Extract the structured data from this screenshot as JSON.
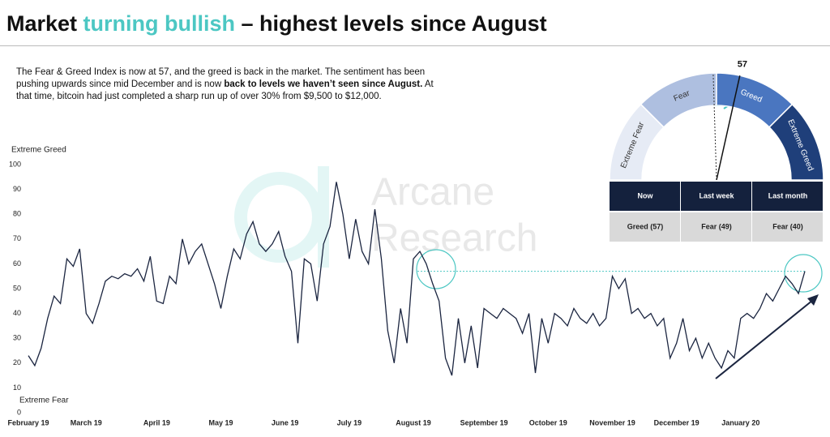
{
  "header": {
    "title": [
      "Market ",
      "turning bullish",
      " – highest levels since August"
    ]
  },
  "intro": [
    "The Fear & Greed Index is now at 57, and the greed is back in the market. The sentiment has been pushing upwards since mid December and is now ",
    "back to levels we haven’t seen since August.",
    " At that time, bitcoin had just completed a sharp run up of over 30% from $9,500 to $12,000."
  ],
  "watermark": [
    "Arcane",
    "Research"
  ],
  "gauge": {
    "value": 57,
    "previous": 49,
    "range": [
      0,
      100
    ],
    "segments": [
      {
        "name": "Extreme Fear",
        "color": "#e6ebf5"
      },
      {
        "name": "Fear",
        "color": "#aebfe0"
      },
      {
        "name": "Greed",
        "color": "#4a76c0"
      },
      {
        "name": "Extreme Greed",
        "color": "#1f3f7a"
      }
    ]
  },
  "table": {
    "headers": [
      "Now",
      "Last week",
      "Last month"
    ],
    "rows": [
      [
        "Greed (57)",
        "Fear (49)",
        "Fear (40)"
      ]
    ]
  },
  "chart_data": {
    "type": "line",
    "color": "#1b2540",
    "top_label": "Extreme Greed",
    "bottom_label": "Extreme Fear",
    "categories": [
      "February 19",
      null,
      null,
      null,
      null,
      null,
      null,
      null,
      null,
      "March 19",
      null,
      null,
      null,
      null,
      null,
      null,
      null,
      null,
      null,
      null,
      "April 19",
      null,
      null,
      null,
      null,
      null,
      null,
      null,
      null,
      null,
      "May 19",
      null,
      null,
      null,
      null,
      null,
      null,
      null,
      null,
      null,
      "June 19",
      null,
      null,
      null,
      null,
      null,
      null,
      null,
      null,
      null,
      "July 19",
      null,
      null,
      null,
      null,
      null,
      null,
      null,
      null,
      null,
      "August 19",
      null,
      null,
      null,
      null,
      null,
      null,
      null,
      null,
      null,
      null,
      "September 19",
      null,
      null,
      null,
      null,
      null,
      null,
      null,
      null,
      null,
      "October 19",
      null,
      null,
      null,
      null,
      null,
      null,
      null,
      null,
      null,
      "November 19",
      null,
      null,
      null,
      null,
      null,
      null,
      null,
      null,
      null,
      "December 19",
      null,
      null,
      null,
      null,
      null,
      null,
      null,
      null,
      null,
      "January 20",
      null,
      null,
      null,
      null,
      null,
      null,
      null,
      null,
      null,
      null
    ],
    "values": [
      23,
      19,
      26,
      38,
      47,
      44,
      62,
      59,
      66,
      40,
      36,
      44,
      53,
      55,
      54,
      56,
      55,
      58,
      53,
      63,
      45,
      44,
      55,
      52,
      70,
      60,
      65,
      68,
      60,
      52,
      42,
      55,
      66,
      62,
      72,
      77,
      68,
      65,
      68,
      73,
      63,
      57,
      28,
      62,
      60,
      45,
      68,
      75,
      93,
      80,
      62,
      78,
      65,
      60,
      82,
      62,
      33,
      20,
      42,
      28,
      62,
      65,
      60,
      52,
      45,
      22,
      15,
      38,
      20,
      35,
      18,
      42,
      40,
      38,
      42,
      40,
      38,
      32,
      40,
      16,
      38,
      28,
      40,
      38,
      35,
      42,
      38,
      36,
      40,
      35,
      38,
      55,
      50,
      54,
      40,
      42,
      38,
      40,
      35,
      38,
      22,
      28,
      38,
      25,
      30,
      22,
      28,
      22,
      18,
      25,
      22,
      38,
      40,
      38,
      42,
      48,
      45,
      50,
      55,
      52,
      48,
      57
    ],
    "ylim": [
      0,
      100
    ],
    "yticks": [
      0,
      10,
      20,
      30,
      40,
      50,
      60,
      70,
      80,
      90,
      100
    ]
  }
}
